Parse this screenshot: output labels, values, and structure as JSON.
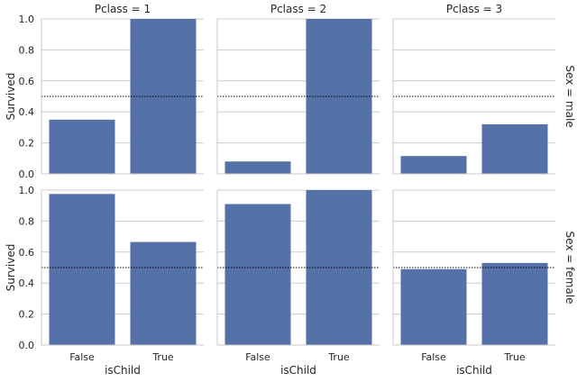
{
  "chart_data": {
    "type": "bar",
    "title": "",
    "xlabel": "isChild",
    "ylabel": "Survived",
    "categories": [
      "False",
      "True"
    ],
    "ylim": [
      0,
      1.0
    ],
    "yticks": [
      "0.0",
      "0.2",
      "0.4",
      "0.6",
      "0.8",
      "1.0"
    ],
    "grid": true,
    "bar_color": "#5471a8",
    "reference_line": 0.5,
    "col_titles": [
      "Pclass = 1",
      "Pclass = 2",
      "Pclass = 3"
    ],
    "row_titles": [
      "Sex = male",
      "Sex = female"
    ],
    "panels": [
      [
        {
          "values": [
            0.35,
            1.0
          ]
        },
        {
          "values": [
            0.08,
            1.0
          ]
        },
        {
          "values": [
            0.115,
            0.32
          ]
        }
      ],
      [
        {
          "values": [
            0.975,
            0.665
          ]
        },
        {
          "values": [
            0.91,
            1.0
          ]
        },
        {
          "values": [
            0.49,
            0.53
          ]
        }
      ]
    ]
  }
}
